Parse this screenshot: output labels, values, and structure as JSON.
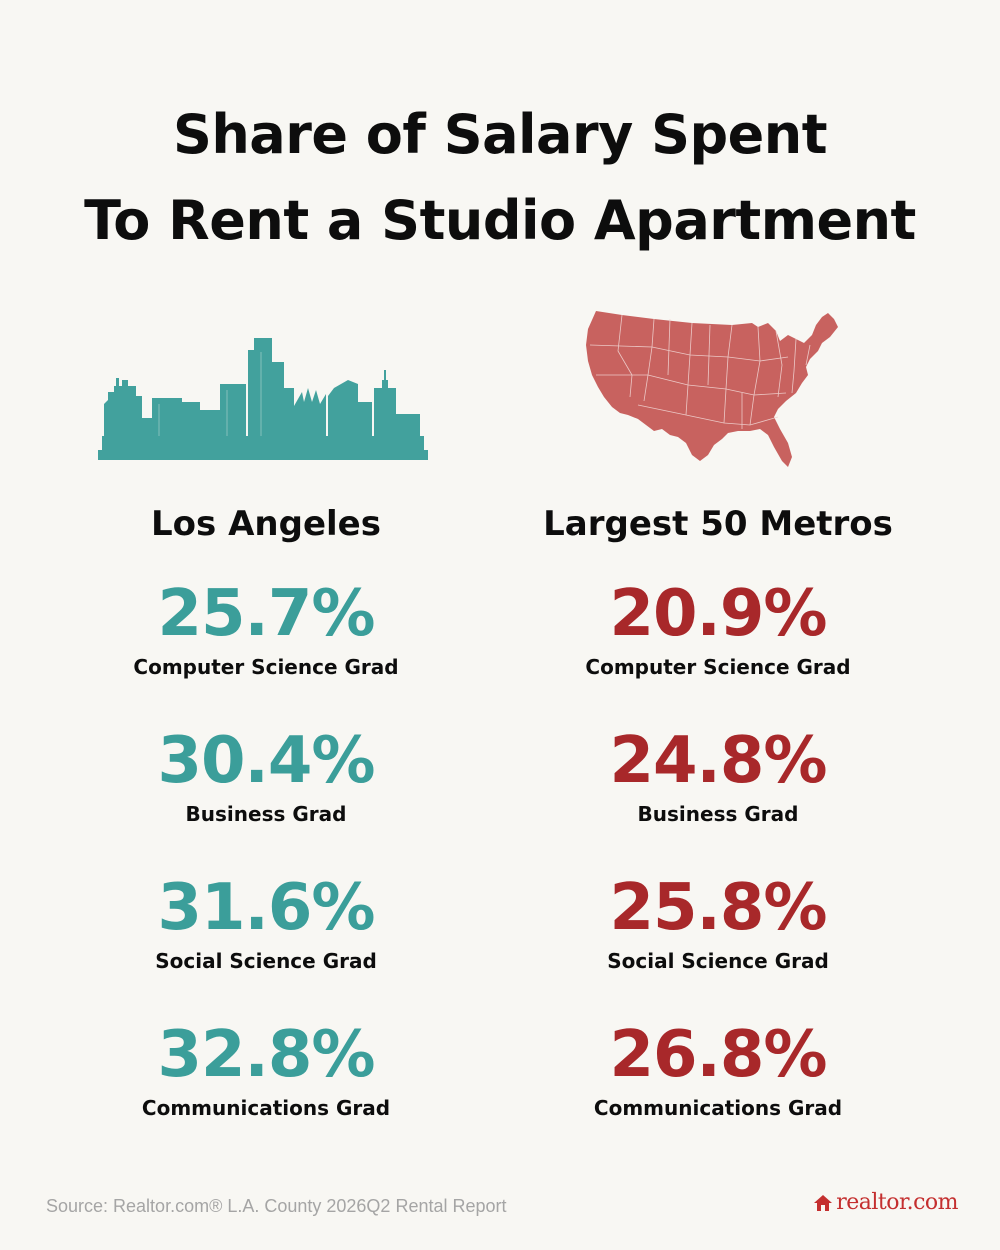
{
  "title": {
    "line1": "Share of Salary Spent",
    "line2": "To Rent a Studio Apartment"
  },
  "colors": {
    "la_accent": "#3b9e9a",
    "metros_accent": "#a8282a",
    "map_fill": "#c8625f",
    "brand": "#c42f2f",
    "background": "#f8f7f3"
  },
  "illustrations": {
    "left": "city-skyline-icon",
    "right": "us-map-icon"
  },
  "columns": [
    {
      "heading": "Los Angeles",
      "stats": [
        {
          "value": "25.7%",
          "label": "Computer Science Grad"
        },
        {
          "value": "30.4%",
          "label": "Business Grad"
        },
        {
          "value": "31.6%",
          "label": "Social Science Grad"
        },
        {
          "value": "32.8%",
          "label": "Communications Grad"
        }
      ]
    },
    {
      "heading": "Largest 50 Metros",
      "stats": [
        {
          "value": "20.9%",
          "label": "Computer Science Grad"
        },
        {
          "value": "24.8%",
          "label": "Business Grad"
        },
        {
          "value": "25.8%",
          "label": "Social Science Grad"
        },
        {
          "value": "26.8%",
          "label": "Communications Grad"
        }
      ]
    }
  ],
  "footer": {
    "source": "Source: Realtor.com® L.A. County 2026Q2 Rental Report",
    "logo_text": "realtor.com"
  }
}
